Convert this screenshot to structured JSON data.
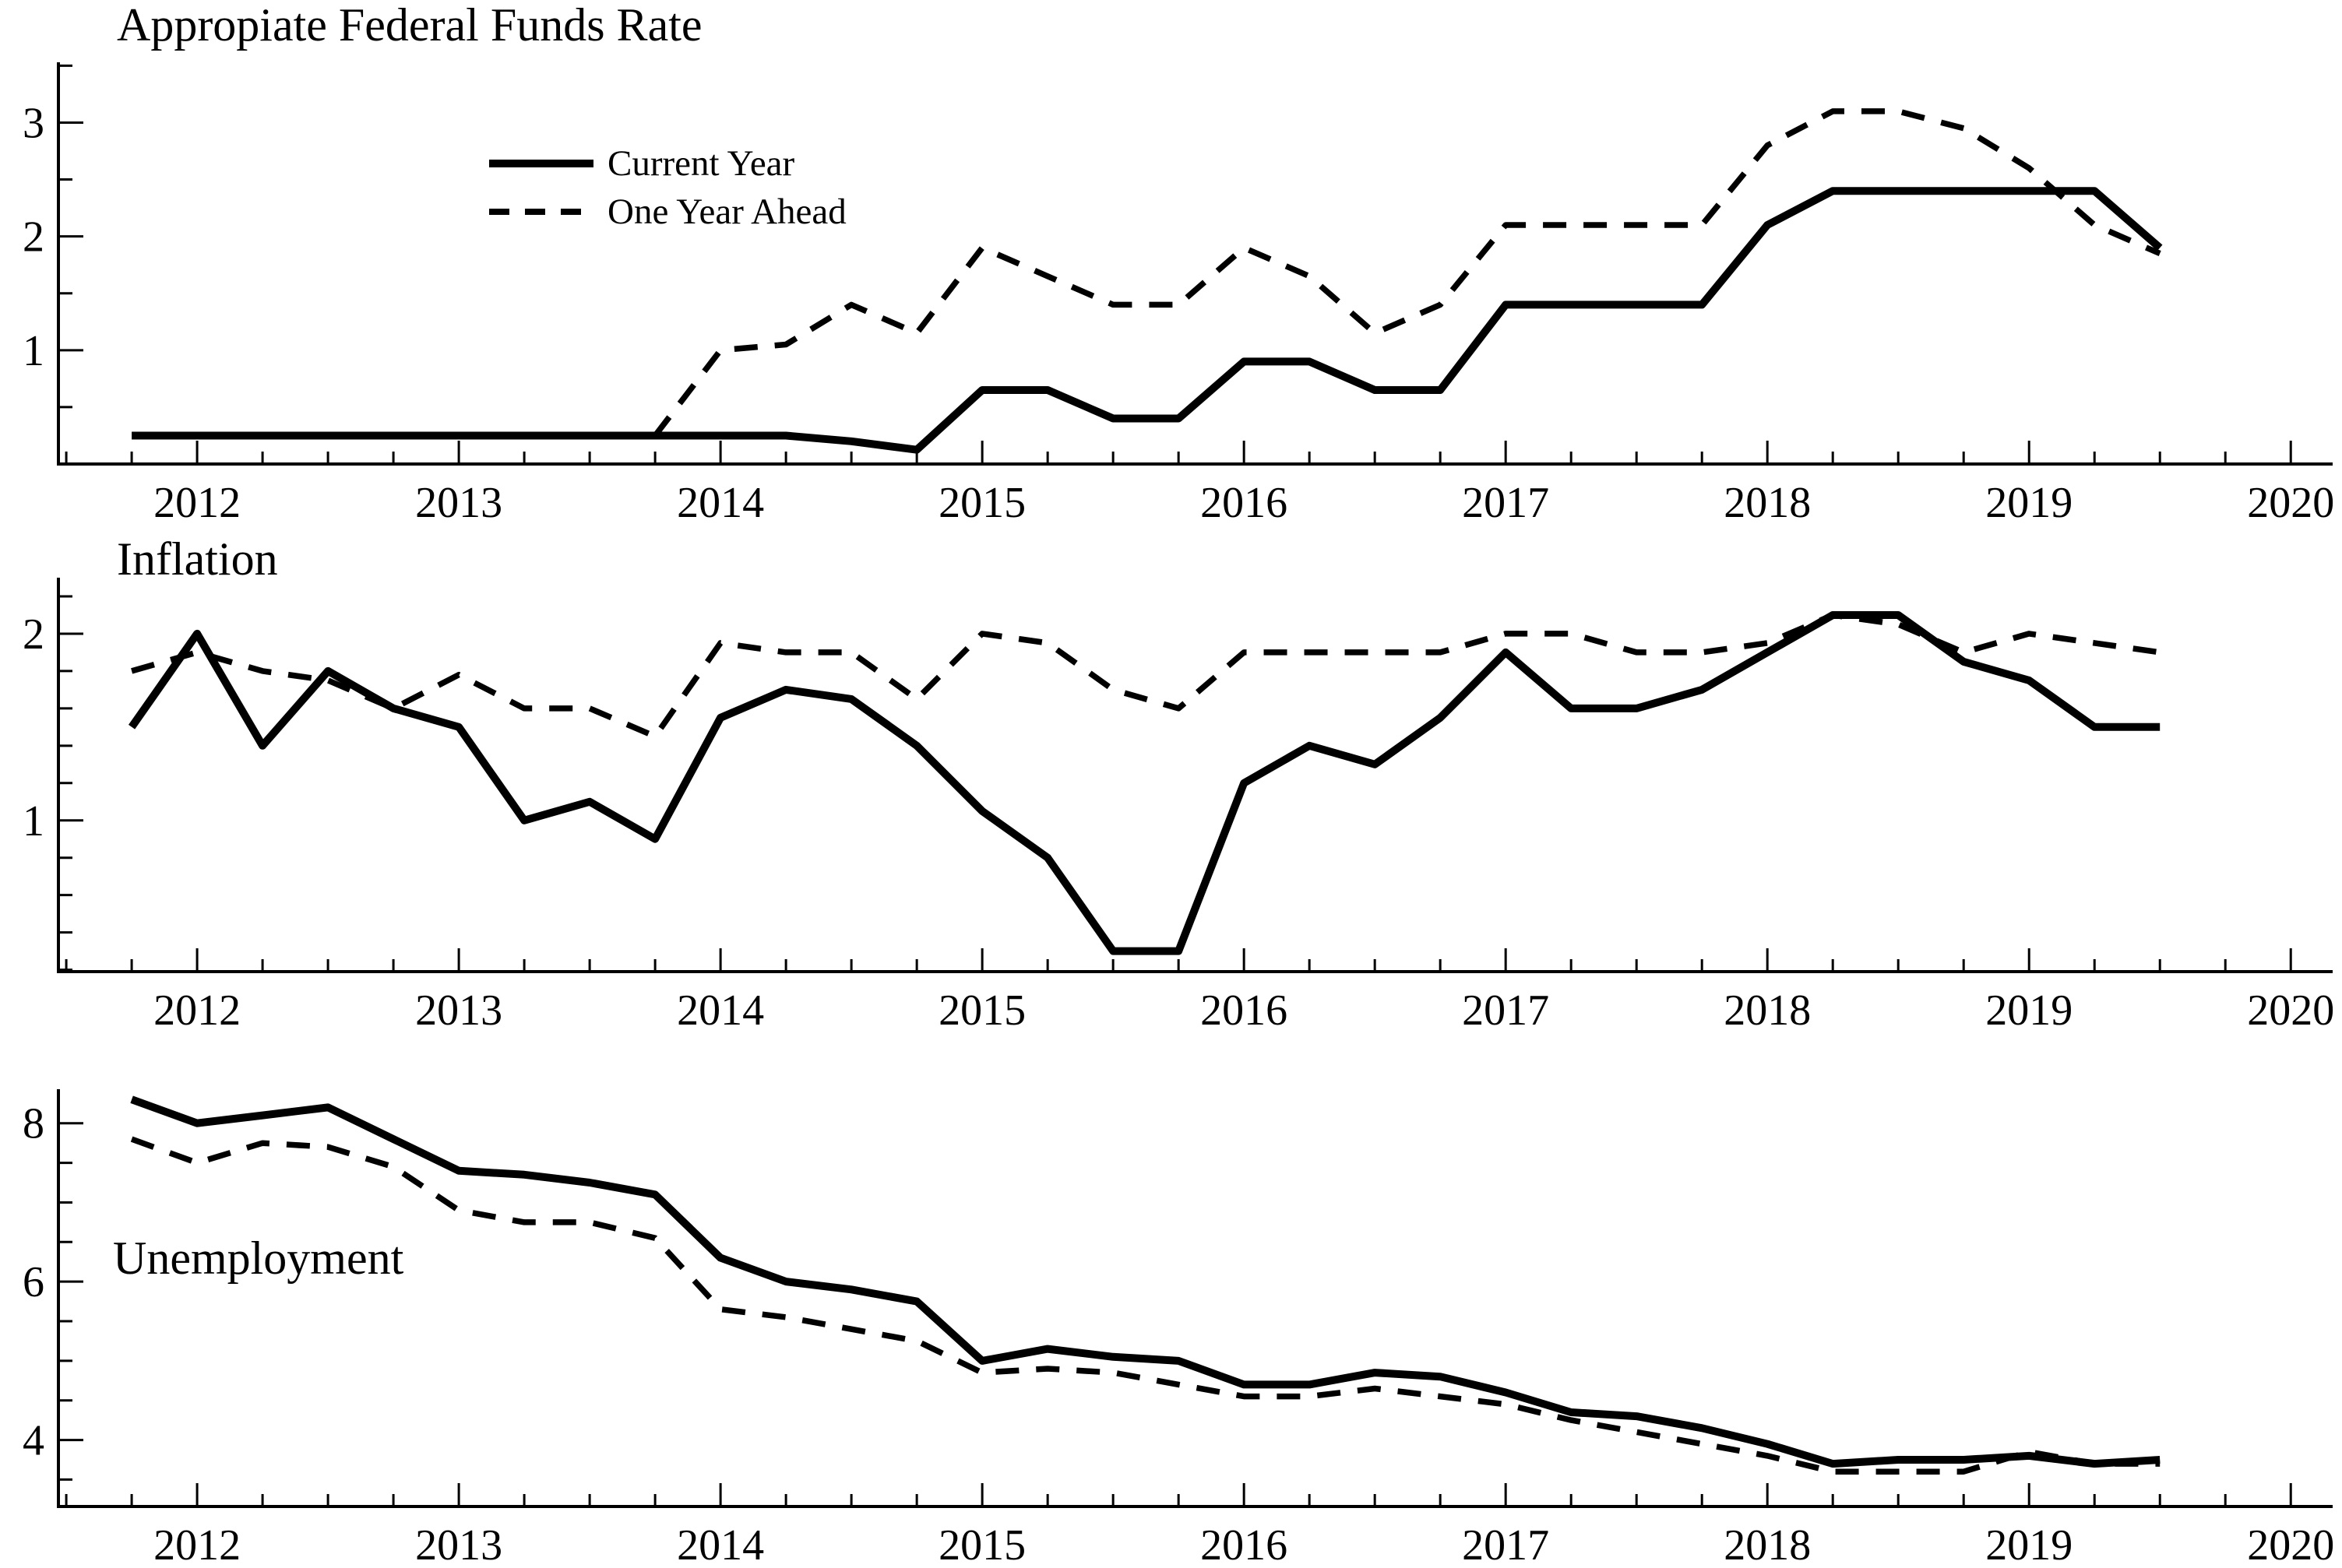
{
  "chart_data": [
    {
      "type": "line",
      "title": "Appropiate Federal Funds Rate",
      "xlim": [
        2011.47,
        2020.16
      ],
      "ylim": [
        0,
        3.53
      ],
      "yticks_major": [
        1,
        2,
        3
      ],
      "ytick_minor_step": 0.5,
      "xticks_major": [
        2012,
        2013,
        2014,
        2015,
        2016,
        2017,
        2018,
        2019,
        2020
      ],
      "xtick_minor_step": 0.25,
      "grid": "off",
      "legend_position": "upper-left-inside",
      "series": [
        {
          "name": "Current Year",
          "style": "solid",
          "x": [
            2011.75,
            2012,
            2012.25,
            2012.5,
            2012.75,
            2013,
            2013.25,
            2013.5,
            2013.75,
            2014,
            2014.25,
            2014.5,
            2014.75,
            2015,
            2015.25,
            2015.5,
            2015.75,
            2016,
            2016.25,
            2016.5,
            2016.75,
            2017,
            2017.25,
            2017.5,
            2017.75,
            2018,
            2018.25,
            2018.5,
            2018.75,
            2019,
            2019.25,
            2019.5
          ],
          "values": [
            0.25,
            0.25,
            0.25,
            0.25,
            0.25,
            0.25,
            0.25,
            0.25,
            0.25,
            0.25,
            0.25,
            0.2,
            0.125,
            0.65,
            0.65,
            0.4,
            0.4,
            0.9,
            0.9,
            0.65,
            0.65,
            1.4,
            1.4,
            1.4,
            1.4,
            2.1,
            2.4,
            2.4,
            2.4,
            2.4,
            2.4,
            1.9
          ]
        },
        {
          "name": "One Year Ahead",
          "style": "dashed",
          "x": [
            2013.75,
            2014,
            2014.25,
            2014.5,
            2014.75,
            2015,
            2015.25,
            2015.5,
            2015.75,
            2016,
            2016.25,
            2016.5,
            2016.75,
            2017,
            2017.25,
            2017.5,
            2017.75,
            2018,
            2018.25,
            2018.5,
            2018.75,
            2019,
            2019.25,
            2019.5
          ],
          "values": [
            0.25,
            1.0,
            1.05,
            1.4,
            1.15,
            1.9,
            1.65,
            1.4,
            1.4,
            1.9,
            1.65,
            1.15,
            1.4,
            2.1,
            2.1,
            2.1,
            2.1,
            2.8,
            3.1,
            3.1,
            2.95,
            2.6,
            2.1,
            1.85
          ]
        }
      ]
    },
    {
      "type": "line",
      "title": "Inflation",
      "xlim": [
        2011.47,
        2020.16
      ],
      "ylim": [
        0.19,
        2.3
      ],
      "yticks_major": [
        1,
        2
      ],
      "ytick_minor_step": 0.2,
      "xticks_major": [
        2012,
        2013,
        2014,
        2015,
        2016,
        2017,
        2018,
        2019,
        2020
      ],
      "xtick_minor_step": 0.25,
      "grid": "off",
      "series": [
        {
          "name": "Current Year",
          "style": "solid",
          "x": [
            2011.75,
            2012,
            2012.25,
            2012.5,
            2012.75,
            2013,
            2013.25,
            2013.5,
            2013.75,
            2014,
            2014.25,
            2014.5,
            2014.75,
            2015,
            2015.25,
            2015.5,
            2015.75,
            2016,
            2016.25,
            2016.5,
            2016.75,
            2017,
            2017.25,
            2017.5,
            2017.75,
            2018,
            2018.25,
            2018.5,
            2018.75,
            2019,
            2019.25,
            2019.5
          ],
          "values": [
            1.5,
            2.0,
            1.4,
            1.8,
            1.6,
            1.5,
            1.0,
            1.1,
            0.9,
            1.55,
            1.7,
            1.65,
            1.4,
            1.05,
            0.8,
            0.3,
            0.3,
            1.2,
            1.4,
            1.3,
            1.55,
            1.9,
            1.6,
            1.6,
            1.7,
            1.9,
            2.1,
            2.1,
            1.85,
            1.75,
            1.5,
            1.5
          ]
        },
        {
          "name": "One Year Ahead",
          "style": "dashed",
          "x": [
            2011.75,
            2012,
            2012.25,
            2012.5,
            2012.75,
            2013,
            2013.25,
            2013.5,
            2013.75,
            2014,
            2014.25,
            2014.5,
            2014.75,
            2015,
            2015.25,
            2015.5,
            2015.75,
            2016,
            2016.25,
            2016.5,
            2016.75,
            2017,
            2017.25,
            2017.5,
            2017.75,
            2018,
            2018.25,
            2018.5,
            2018.75,
            2019,
            2019.25,
            2019.5
          ],
          "values": [
            1.8,
            1.9,
            1.8,
            1.75,
            1.6,
            1.78,
            1.6,
            1.6,
            1.45,
            1.95,
            1.9,
            1.9,
            1.65,
            2.0,
            1.95,
            1.7,
            1.6,
            1.9,
            1.9,
            1.9,
            1.9,
            2.0,
            2.0,
            1.9,
            1.9,
            1.95,
            2.1,
            2.05,
            1.9,
            2.0,
            1.95,
            1.9
          ]
        }
      ]
    },
    {
      "type": "line",
      "title": "Unemployment",
      "title_position": "inside-left",
      "xlim": [
        2011.47,
        2020.16
      ],
      "ylim": [
        3.16,
        8.43
      ],
      "yticks_major": [
        4,
        6,
        8
      ],
      "ytick_minor_step": 0.5,
      "xticks_major": [
        2012,
        2013,
        2014,
        2015,
        2016,
        2017,
        2018,
        2019,
        2020
      ],
      "xtick_minor_step": 0.25,
      "grid": "off",
      "series": [
        {
          "name": "Current Year",
          "style": "solid",
          "x": [
            2011.75,
            2012,
            2012.25,
            2012.5,
            2012.75,
            2013,
            2013.25,
            2013.5,
            2013.75,
            2014,
            2014.25,
            2014.5,
            2014.75,
            2015,
            2015.25,
            2015.5,
            2015.75,
            2016,
            2016.25,
            2016.5,
            2016.75,
            2017,
            2017.25,
            2017.5,
            2017.75,
            2018,
            2018.25,
            2018.5,
            2018.75,
            2019,
            2019.25,
            2019.5
          ],
          "values": [
            8.3,
            8.0,
            8.1,
            8.2,
            7.8,
            7.4,
            7.35,
            7.25,
            7.1,
            6.3,
            6.0,
            5.9,
            5.75,
            5.0,
            5.15,
            5.05,
            5.0,
            4.7,
            4.7,
            4.85,
            4.8,
            4.6,
            4.35,
            4.3,
            4.15,
            3.95,
            3.7,
            3.75,
            3.75,
            3.8,
            3.7,
            3.75
          ]
        },
        {
          "name": "One Year Ahead",
          "style": "dashed",
          "x": [
            2011.75,
            2012,
            2012.25,
            2012.5,
            2012.75,
            2013,
            2013.25,
            2013.5,
            2013.75,
            2014,
            2014.25,
            2014.5,
            2014.75,
            2015,
            2015.25,
            2015.5,
            2015.75,
            2016,
            2016.25,
            2016.5,
            2016.75,
            2017,
            2017.25,
            2017.5,
            2017.75,
            2018,
            2018.25,
            2018.5,
            2018.75,
            2019,
            2019.25,
            2019.5
          ],
          "values": [
            7.8,
            7.5,
            7.75,
            7.7,
            7.45,
            6.9,
            6.75,
            6.75,
            6.55,
            5.65,
            5.55,
            5.4,
            5.25,
            4.85,
            4.9,
            4.85,
            4.7,
            4.55,
            4.55,
            4.65,
            4.55,
            4.45,
            4.25,
            4.1,
            3.95,
            3.8,
            3.6,
            3.6,
            3.6,
            3.85,
            3.7,
            3.7
          ]
        }
      ]
    }
  ],
  "legend": {
    "entries": [
      "Current Year",
      "One Year Ahead"
    ]
  }
}
